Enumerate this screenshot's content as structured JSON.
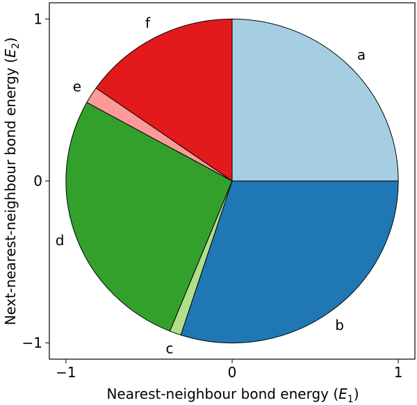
{
  "chart_data": {
    "type": "pie",
    "xlabel": "Nearest-neighbour bond energy (E1)",
    "ylabel": "Next-nearest-neighbour bond energy (E2)",
    "xlabel_parts": {
      "prefix": "Nearest-neighbour bond energy (",
      "symbol": "E",
      "sub": "1",
      "suffix": ")"
    },
    "ylabel_parts": {
      "prefix": "Next-nearest-neighbour bond energy (",
      "symbol": "E",
      "sub": "2",
      "suffix": ")"
    },
    "xlim": [
      -1.1,
      1.1
    ],
    "ylim": [
      -1.1,
      1.1
    ],
    "xticks": [
      {
        "value": -1,
        "label": "−1"
      },
      {
        "value": 0,
        "label": "0"
      },
      {
        "value": 1,
        "label": "1"
      }
    ],
    "yticks": [
      {
        "value": 1,
        "label": "1"
      },
      {
        "value": 0,
        "label": "0"
      },
      {
        "value": -1,
        "label": "−1"
      }
    ],
    "grid": false,
    "slices": [
      {
        "label": "a",
        "start_deg": 0,
        "end_deg": 90,
        "color": "#a6cee3"
      },
      {
        "label": "b",
        "start_deg": -108,
        "end_deg": 0,
        "color": "#1f78b4"
      },
      {
        "label": "c",
        "start_deg": -112,
        "end_deg": -108,
        "color": "#b2df8a"
      },
      {
        "label": "d",
        "start_deg": -209,
        "end_deg": -112,
        "color": "#33a02c"
      },
      {
        "label": "e",
        "start_deg": 145,
        "end_deg": 151,
        "color": "#fb9a99"
      },
      {
        "label": "f",
        "start_deg": 90,
        "end_deg": 145,
        "color": "#e31a1c"
      }
    ]
  }
}
